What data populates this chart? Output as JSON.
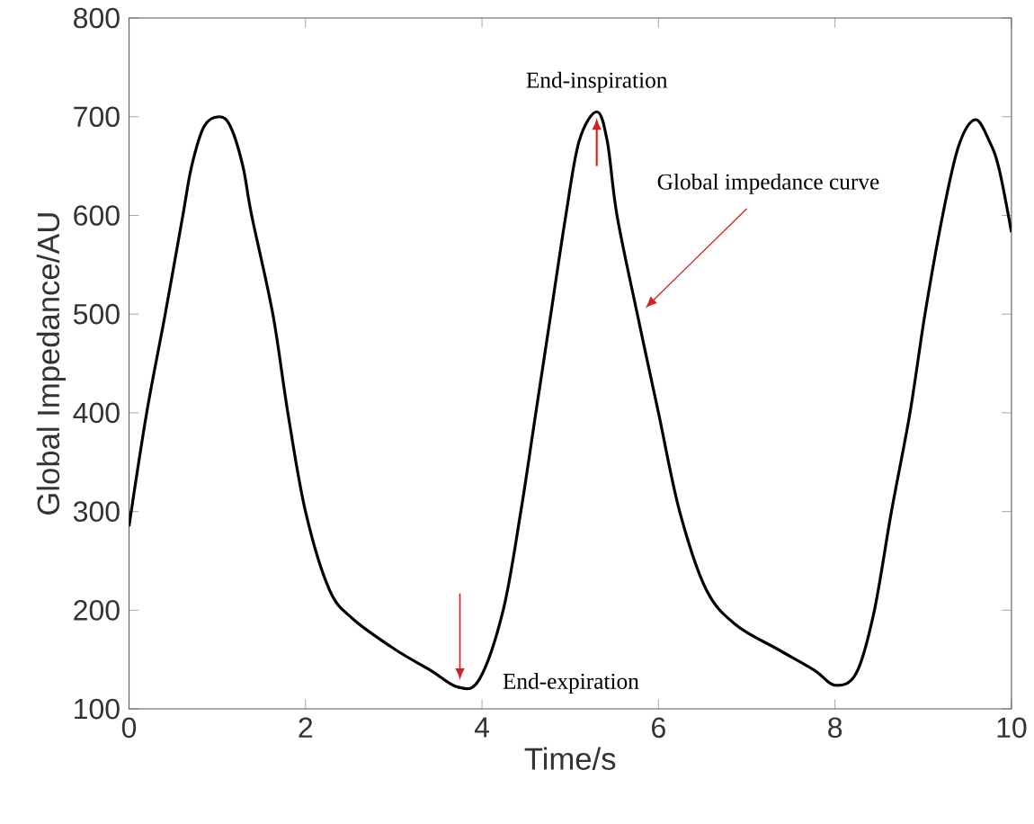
{
  "chart_data": {
    "type": "line",
    "xlabel": "Time/s",
    "ylabel": "Global Impedance/AU",
    "xlim": [
      0,
      10
    ],
    "ylim": [
      100,
      800
    ],
    "xticks": [
      0,
      2,
      4,
      6,
      8,
      10
    ],
    "yticks": [
      100,
      200,
      300,
      400,
      500,
      600,
      700,
      800
    ],
    "grid": false,
    "marker": "none",
    "line_style": "solid",
    "series": [
      {
        "color": "#000000",
        "x": [
          0,
          0.2,
          0.41,
          0.61,
          0.71,
          0.85,
          1.02,
          1.15,
          1.29,
          1.39,
          1.63,
          1.8,
          2.0,
          2.27,
          2.54,
          3.02,
          3.42,
          3.73,
          3.97,
          4.24,
          4.44,
          4.61,
          4.78,
          4.95,
          5.1,
          5.3,
          5.42,
          5.53,
          5.76,
          6.0,
          6.24,
          6.54,
          6.88,
          7.36,
          7.77,
          8.0,
          8.24,
          8.44,
          8.64,
          8.85,
          9.02,
          9.22,
          9.4,
          9.59,
          9.75,
          9.86,
          10.0
        ],
        "values": [
          285,
          400,
          500,
          600,
          650,
          690,
          700,
          690,
          650,
          600,
          500,
          400,
          300,
          221,
          191,
          160,
          139,
          122,
          130,
          200,
          300,
          400,
          500,
          600,
          675,
          705,
          675,
          600,
          500,
          400,
          300,
          221,
          185,
          160,
          139,
          124,
          136,
          197,
          300,
          400,
          500,
          600,
          670,
          697,
          675,
          647,
          583
        ]
      }
    ],
    "annotations": [
      {
        "text": "End-inspiration",
        "x": 5.3,
        "y": 705
      },
      {
        "text": "End-expiration",
        "x": 3.75,
        "y": 122
      },
      "Global impedance curve"
    ]
  }
}
